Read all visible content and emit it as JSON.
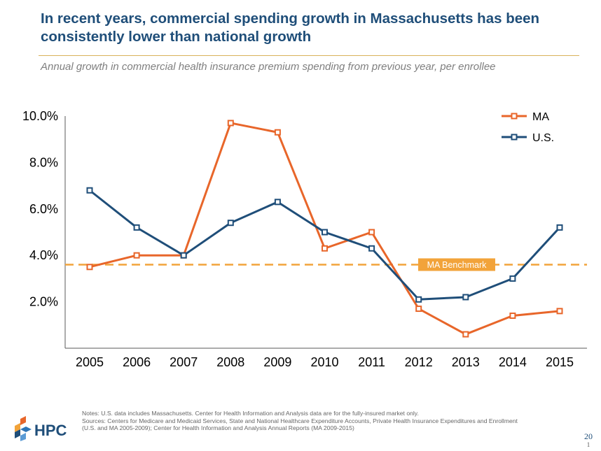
{
  "header": {
    "title": "In recent years, commercial spending growth in Massachusetts has been consistently lower than national growth",
    "subtitle": "Annual growth in commercial health insurance premium spending from previous year, per enrollee"
  },
  "chart_data": {
    "type": "line",
    "x": [
      "2005",
      "2006",
      "2007",
      "2008",
      "2009",
      "2010",
      "2011",
      "2012",
      "2013",
      "2014",
      "2015"
    ],
    "series": [
      {
        "name": "MA",
        "color": "#e8662a",
        "values": [
          3.5,
          4.0,
          4.0,
          9.7,
          9.3,
          4.3,
          5.0,
          1.7,
          0.6,
          1.4,
          1.6
        ]
      },
      {
        "name": "U.S.",
        "color": "#1f4e79",
        "values": [
          6.8,
          5.2,
          4.0,
          5.4,
          6.3,
          5.0,
          4.3,
          2.1,
          2.2,
          3.0,
          5.2
        ]
      }
    ],
    "y_ticks": [
      "2.0%",
      "4.0%",
      "6.0%",
      "8.0%",
      "10.0%"
    ],
    "y_tick_values": [
      2,
      4,
      6,
      8,
      10
    ],
    "ylim": [
      0,
      10
    ],
    "benchmark": {
      "label": "MA Benchmark",
      "value": 3.6,
      "color": "#f2a33a"
    },
    "legend_position": "top-right",
    "grid": false
  },
  "footer": {
    "notes": [
      "Notes: U.S. data includes Massachusetts. Center for Health Information and Analysis data are for the fully-insured market only.",
      "Sources: Centers for Medicare and Medicaid Services, State and National Healthcare Expenditure Accounts, Private Health Insurance Expenditures and Enrollment",
      "(U.S. and MA 2005-2009); Center for Health Information and Analysis Annual Reports (MA 2009-2015)"
    ],
    "logo_text": "HPC",
    "logo_icon": "hpc-logo-icon",
    "page_number": "20",
    "page_sub": "1"
  }
}
